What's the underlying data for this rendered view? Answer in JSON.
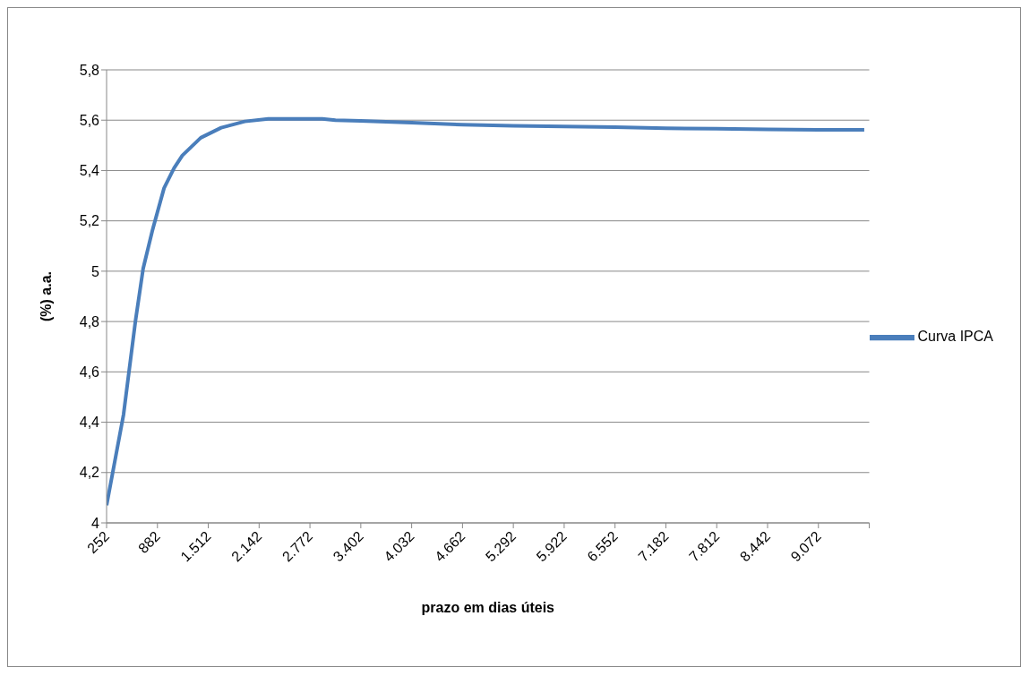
{
  "chart_data": {
    "type": "line",
    "xlabel": "prazo em dias úteis",
    "ylabel": "(%) a.a.",
    "x": [
      252,
      462,
      609,
      705,
      818,
      964,
      1089,
      1191,
      1419,
      1672,
      1964,
      2256,
      2924,
      3088,
      3400,
      4032,
      4662,
      5292,
      5922,
      6552,
      7182,
      7812,
      8442,
      9072,
      9640
    ],
    "series": [
      {
        "name": "Curva IPCA",
        "color": "#4a7ebb",
        "values": [
          4.07,
          4.43,
          4.8,
          5.01,
          5.16,
          5.33,
          5.41,
          5.46,
          5.53,
          5.57,
          5.595,
          5.605,
          5.605,
          5.6,
          5.597,
          5.59,
          5.582,
          5.578,
          5.575,
          5.572,
          5.568,
          5.566,
          5.563,
          5.562,
          5.562
        ]
      }
    ],
    "xlim": [
      252,
      9702
    ],
    "xticks": [
      252,
      882,
      {
        "value": 1512,
        "label": "1.512"
      },
      {
        "value": 2142,
        "label": "2.142"
      },
      {
        "value": 2772,
        "label": "2.772"
      },
      {
        "value": 3402,
        "label": "3.402"
      },
      {
        "value": 4032,
        "label": "4.032"
      },
      {
        "value": 4662,
        "label": "4.662"
      },
      {
        "value": 5292,
        "label": "5.292"
      },
      {
        "value": 5922,
        "label": "5.922"
      },
      {
        "value": 6552,
        "label": "6.552"
      },
      {
        "value": 7182,
        "label": "7.182"
      },
      {
        "value": 7812,
        "label": "7.812"
      },
      {
        "value": 8442,
        "label": "8.442"
      },
      {
        "value": 9072,
        "label": "9.072"
      },
      {
        "value": 9702,
        "label": null
      }
    ],
    "ylim": [
      4,
      5.8
    ],
    "yticks": [
      4,
      {
        "value": 4.2,
        "label": "4,2"
      },
      {
        "value": 4.4,
        "label": "4,4"
      },
      {
        "value": 4.6,
        "label": "4,6"
      },
      {
        "value": 4.8,
        "label": "4,8"
      },
      5,
      {
        "value": 5.2,
        "label": "5,2"
      },
      {
        "value": 5.4,
        "label": "5,4"
      },
      {
        "value": 5.6,
        "label": "5,6"
      },
      {
        "value": 5.8,
        "label": "5,8"
      }
    ],
    "grid": "y",
    "legend": "right",
    "marker": "none",
    "line_style": "solid"
  }
}
